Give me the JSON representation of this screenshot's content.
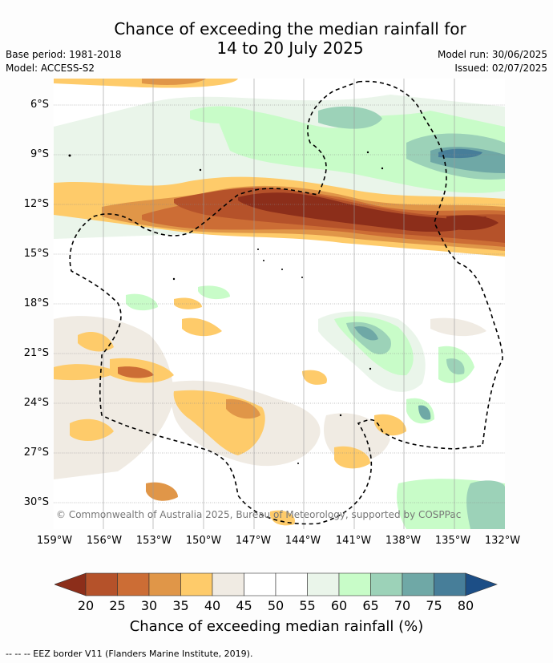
{
  "title_line1": "Chance of exceeding the median rainfall for",
  "title_line2": "14 to 20 July 2025",
  "base_period": "Base period: 1981-2018",
  "model": "Model: ACCESS-S2",
  "model_run": "Model run: 30/06/2025",
  "issued": "Issued: 02/07/2025",
  "copyright": "© Commonwealth of Australia 2025, Bureau of Meteorology, supported by COSPPac",
  "lat_labels": [
    "6°S",
    "9°S",
    "12°S",
    "15°S",
    "18°S",
    "21°S",
    "24°S",
    "27°S",
    "30°S"
  ],
  "lon_labels": [
    "159°W",
    "156°W",
    "153°W",
    "150°W",
    "147°W",
    "144°W",
    "141°W",
    "138°W",
    "135°W",
    "132°W"
  ],
  "colorbar": {
    "title": "Chance of exceeding median rainfall (%)",
    "tick_labels": [
      "20",
      "25",
      "30",
      "35",
      "40",
      "45",
      "50",
      "55",
      "60",
      "65",
      "70",
      "75",
      "80"
    ],
    "colors": [
      "#8c2e1a",
      "#b5522a",
      "#cc6d35",
      "#e09648",
      "#fecb6a",
      "#f0ebe3",
      "#ffffff",
      "#ffffff",
      "#eaf5ea",
      "#c8fcc8",
      "#9cd2b8",
      "#6fa8a6",
      "#477e99",
      "#1c4e86"
    ]
  },
  "footnote": "--  --  -- EEZ border V11 (Flanders Marine Institute, 2019)."
}
